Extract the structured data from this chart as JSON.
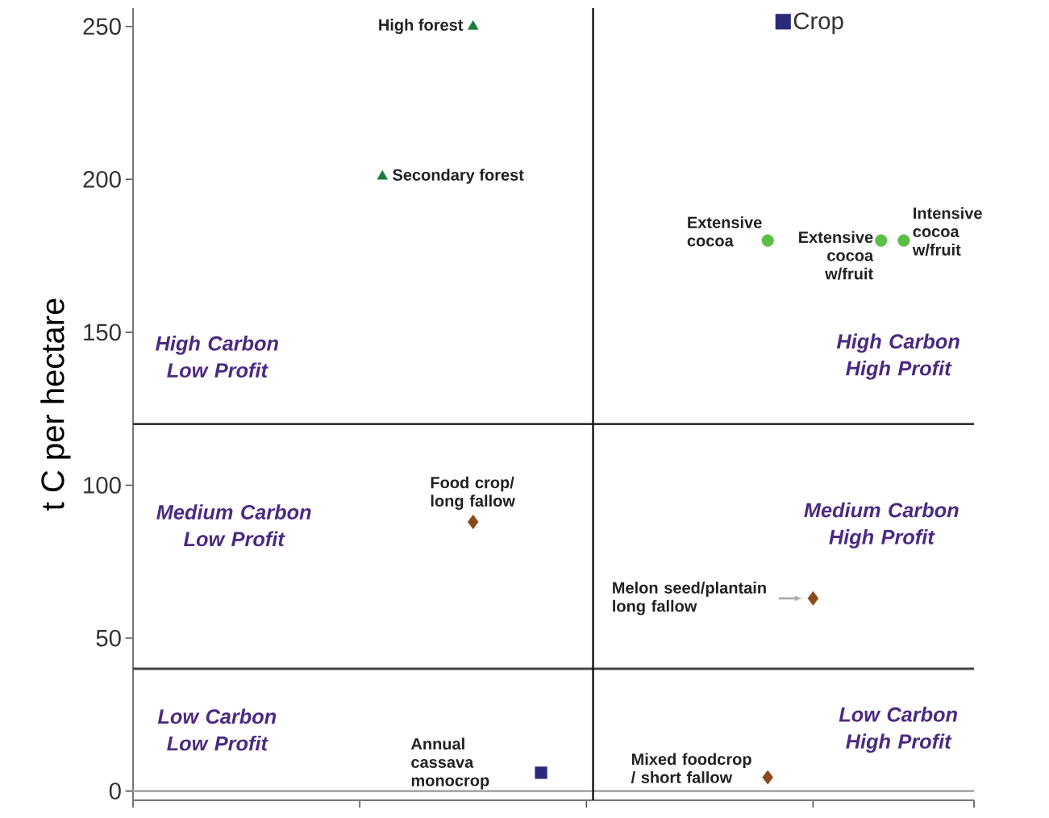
{
  "chart_data": {
    "type": "scatter",
    "ylabel": "t C per hectare",
    "categories": [
      null,
      null,
      null,
      null,
      null,
      null,
      null,
      null,
      null,
      null,
      null,
      null,
      null,
      null,
      null,
      null,
      null,
      null,
      null,
      null,
      null,
      null,
      null,
      null,
      null,
      null,
      null,
      null,
      null,
      null,
      null,
      null,
      null,
      null,
      null,
      null,
      null,
      null
    ],
    "ylim": [
      -3,
      256
    ],
    "yticks": [
      0,
      50,
      100,
      150,
      200,
      250
    ],
    "series": [
      {
        "color": "#1a7a3a",
        "marker": "triangle",
        "values": [
          null,
          null,
          null,
          null,
          null,
          null,
          null,
          null,
          null,
          null,
          null,
          null,
          null,
          null,
          null,
          250,
          null,
          null,
          null,
          null,
          null,
          null,
          null,
          null,
          null,
          null,
          null,
          null,
          null,
          null,
          null,
          null,
          null,
          null,
          null,
          null,
          null,
          null
        ]
      },
      {
        "color": "#1a7a3a",
        "marker": "triangle",
        "values": [
          null,
          null,
          null,
          null,
          null,
          null,
          null,
          null,
          null,
          null,
          null,
          201,
          null,
          null,
          null,
          null,
          null,
          null,
          null,
          null,
          null,
          null,
          null,
          null,
          null,
          null,
          null,
          null,
          null,
          null,
          null,
          null,
          null,
          null,
          null,
          null,
          null,
          null
        ]
      },
      {
        "color": "#5cbf46",
        "marker": "circle",
        "values": [
          null,
          null,
          null,
          null,
          null,
          null,
          null,
          null,
          null,
          null,
          null,
          null,
          null,
          null,
          null,
          null,
          null,
          null,
          null,
          null,
          null,
          null,
          null,
          null,
          null,
          null,
          null,
          null,
          180,
          null,
          null,
          null,
          null,
          null,
          null,
          null,
          null,
          null
        ]
      },
      {
        "color": "#5cbf46",
        "marker": "circle",
        "values": [
          null,
          null,
          null,
          null,
          null,
          null,
          null,
          null,
          null,
          null,
          null,
          null,
          null,
          null,
          null,
          null,
          null,
          null,
          null,
          null,
          null,
          null,
          null,
          null,
          null,
          null,
          null,
          null,
          null,
          null,
          null,
          null,
          null,
          180,
          null,
          null,
          null,
          null
        ]
      },
      {
        "color": "#5cbf46",
        "marker": "circle",
        "values": [
          null,
          null,
          null,
          null,
          null,
          null,
          null,
          null,
          null,
          null,
          null,
          null,
          null,
          null,
          null,
          null,
          null,
          null,
          null,
          null,
          null,
          null,
          null,
          null,
          null,
          null,
          null,
          null,
          null,
          null,
          null,
          null,
          null,
          null,
          180,
          null,
          null,
          null
        ]
      },
      {
        "color": "#8a4a1c",
        "marker": "diamond",
        "values": [
          null,
          null,
          null,
          null,
          null,
          null,
          null,
          null,
          null,
          null,
          null,
          null,
          null,
          null,
          null,
          88,
          null,
          null,
          null,
          null,
          null,
          null,
          null,
          null,
          null,
          null,
          null,
          null,
          null,
          null,
          null,
          null,
          null,
          null,
          null,
          null,
          null,
          null
        ]
      },
      {
        "color": "#8a4a1c",
        "marker": "diamond",
        "values": [
          null,
          null,
          null,
          null,
          null,
          null,
          null,
          null,
          null,
          null,
          null,
          null,
          null,
          null,
          null,
          null,
          null,
          null,
          null,
          null,
          null,
          null,
          null,
          null,
          null,
          null,
          null,
          null,
          null,
          null,
          63,
          null,
          null,
          null,
          null,
          null,
          null,
          null
        ]
      },
      {
        "color": "#8a4a1c",
        "marker": "diamond",
        "values": [
          null,
          null,
          null,
          null,
          null,
          null,
          null,
          null,
          null,
          null,
          null,
          null,
          null,
          null,
          null,
          null,
          null,
          null,
          null,
          null,
          null,
          null,
          null,
          null,
          null,
          null,
          null,
          null,
          4.5,
          null,
          null,
          null,
          null,
          null,
          null,
          null,
          null,
          null
        ]
      },
      {
        "name": "Crop",
        "color": "#2a2a7a",
        "marker": "square",
        "values": [
          null,
          null,
          null,
          null,
          null,
          null,
          null,
          null,
          null,
          null,
          null,
          null,
          null,
          null,
          null,
          null,
          null,
          null,
          6,
          null,
          null,
          null,
          null,
          null,
          null,
          null,
          null,
          null,
          null,
          null,
          null,
          null,
          null,
          null,
          null,
          null,
          null,
          null
        ]
      }
    ],
    "ref_lines": [
      {
        "axis": "y",
        "value": 120,
        "color": "#333333"
      },
      {
        "axis": "y",
        "value": 40,
        "color": "#444444"
      },
      {
        "axis": "y",
        "value": 0,
        "color": "#aaaaaa"
      }
    ],
    "legend": "top right",
    "annotations": [
      "High forest",
      "Secondary forest",
      "Extensive cocoa",
      "Extensive cocoa w/fruit",
      "Intensive cocoa w/fruit",
      "Food crop/ long fallow",
      "Melon seed/plantain long fallow",
      "Mixed foodcrop / short fallow",
      "Annual cassava monocrop",
      "High Carbon Low Profit",
      "High Carbon High Profit",
      "Medium Carbon Low Profit",
      "Medium Carbon High Profit",
      "Low Carbon Low Profit",
      "Low Carbon High Profit"
    ]
  }
}
